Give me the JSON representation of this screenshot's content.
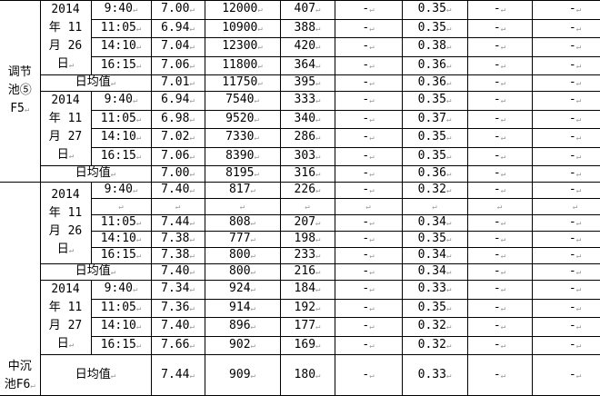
{
  "sections": [
    {
      "site_lines": [
        "调节",
        "池⑤",
        "F5"
      ],
      "days": [
        {
          "date_lines": [
            "2014",
            "年 11",
            "月 26",
            "日"
          ],
          "rows": [
            [
              "9:40",
              "7.00",
              "12000",
              "407",
              "-",
              "0.35",
              "-",
              "-"
            ],
            [
              "11:05",
              "6.94",
              "10900",
              "388",
              "-",
              "0.35",
              "-",
              "-"
            ],
            [
              "14:10",
              "7.04",
              "12300",
              "420",
              "-",
              "0.38",
              "-",
              "-"
            ],
            [
              "16:15",
              "7.06",
              "11800",
              "364",
              "-",
              "0.36",
              "-",
              "-"
            ]
          ],
          "avg": [
            "日均值",
            "7.01",
            "11750",
            "395",
            "-",
            "0.36",
            "-",
            "-"
          ]
        },
        {
          "date_lines": [
            "2014",
            "年 11",
            "月 27",
            "日"
          ],
          "rows": [
            [
              "9:40",
              "6.94",
              "7540",
              "333",
              "-",
              "0.35",
              "-",
              "-"
            ],
            [
              "11:05",
              "6.98",
              "9520",
              "340",
              "-",
              "0.37",
              "-",
              "-"
            ],
            [
              "14:10",
              "7.02",
              "7330",
              "286",
              "-",
              "0.35",
              "-",
              "-"
            ],
            [
              "16:15",
              "7.06",
              "8390",
              "303",
              "-",
              "0.35",
              "-",
              "-"
            ]
          ],
          "avg": [
            "日均值",
            "7.00",
            "8195",
            "316",
            "-",
            "0.36",
            "-",
            "-"
          ]
        }
      ]
    },
    {
      "site_lines": [
        "中沉",
        "池F6"
      ],
      "days": [
        {
          "date_lines": [
            "2014",
            "年 11",
            "月 26",
            "日"
          ],
          "rows": [
            [
              "9:40",
              "7.40",
              "817",
              "226",
              "-",
              "0.32",
              "-",
              "-"
            ],
            [
              "",
              "",
              "",
              "",
              "",
              "",
              "",
              ""
            ],
            [
              "11:05",
              "7.44",
              "808",
              "207",
              "-",
              "0.34",
              "-",
              "-"
            ],
            [
              "14:10",
              "7.38",
              "777",
              "198",
              "-",
              "0.35",
              "-",
              "-"
            ],
            [
              "16:15",
              "7.38",
              "800",
              "233",
              "-",
              "0.34",
              "-",
              "-"
            ]
          ],
          "avg": [
            "日均值",
            "7.40",
            "800",
            "216",
            "-",
            "0.34",
            "-",
            "-"
          ]
        },
        {
          "date_lines": [
            "2014",
            "年 11",
            "月 27",
            "日"
          ],
          "rows": [
            [
              "9:40",
              "7.34",
              "924",
              "184",
              "-",
              "0.33",
              "-",
              "-"
            ],
            [
              "11:05",
              "7.36",
              "914",
              "192",
              "-",
              "0.35",
              "-",
              "-"
            ],
            [
              "14:10",
              "7.40",
              "896",
              "177",
              "-",
              "0.32",
              "-",
              "-"
            ],
            [
              "16:15",
              "7.66",
              "902",
              "169",
              "-",
              "0.32",
              "-",
              "-"
            ]
          ],
          "avg": [
            "日均值",
            "7.44",
            "909",
            "180",
            "-",
            "0.33",
            "-",
            "-"
          ]
        }
      ]
    }
  ]
}
